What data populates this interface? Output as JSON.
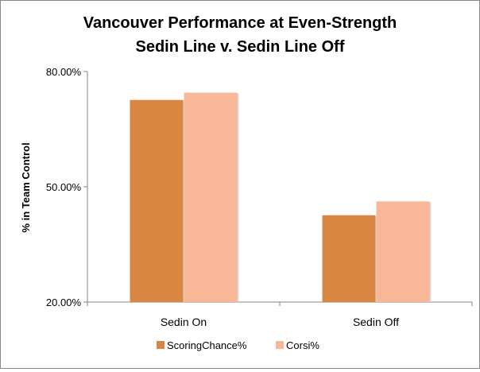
{
  "chart_data": {
    "type": "bar",
    "title": [
      "Vancouver Performance at Even-Strength",
      "Sedin Line v. Sedin Line Off"
    ],
    "xlabel": "",
    "ylabel": "% in Team Control",
    "categories": [
      "Sedin On",
      "Sedin Off"
    ],
    "series": [
      {
        "name": "ScoringChance%",
        "values": [
          0.726,
          0.426
        ],
        "color": "#d98642"
      },
      {
        "name": "Corsi%",
        "values": [
          0.745,
          0.462
        ],
        "color": "#f8b796"
      }
    ],
    "ylim": [
      0.2,
      0.8
    ],
    "yticks": [
      0.2,
      0.5,
      0.8
    ],
    "ytick_labels": [
      "20.00%",
      "50.00%",
      "80.00%"
    ],
    "grid": false,
    "legend_position": "bottom"
  }
}
